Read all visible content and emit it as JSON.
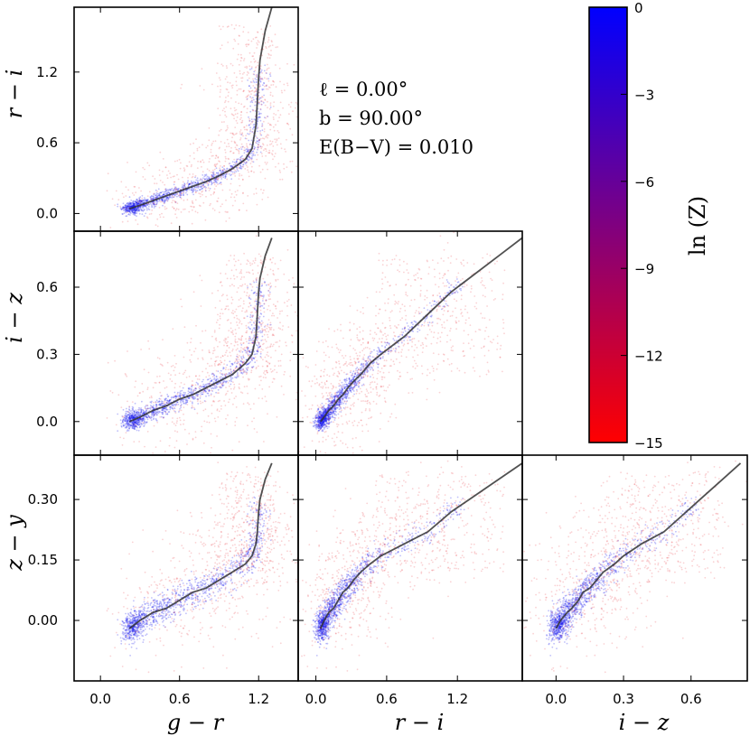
{
  "chart_data": {
    "type": "scatter",
    "description_free": true,
    "annotations": [
      "ℓ = 0.00°",
      "b = 90.00°",
      "E(B−V) = 0.010"
    ],
    "colorbar": {
      "label": "ln (Z)",
      "range": [
        -15,
        0
      ],
      "ticks": [
        0,
        -3,
        -6,
        -9,
        -12,
        -15
      ],
      "tick_labels": [
        "0",
        "−3",
        "−6",
        "−9",
        "−12",
        "−15"
      ],
      "color_low": "#ff0000",
      "color_high": "#0000ff"
    },
    "axis_labels": {
      "g-r": "g − r",
      "r-i": "r − i",
      "i-z": "i − z",
      "z-y": "z − y"
    },
    "ranges": {
      "g-r": [
        -0.2,
        1.5
      ],
      "r-i": [
        -0.15,
        1.75
      ],
      "i-z": [
        -0.15,
        0.85
      ],
      "z-y": [
        -0.15,
        0.41
      ]
    },
    "ticks": {
      "g-r": [
        0.0,
        0.6,
        1.2
      ],
      "r-i": [
        0.0,
        0.6,
        1.2
      ],
      "i-z": [
        0.0,
        0.3,
        0.6
      ],
      "z-y": [
        0.0,
        0.15,
        0.3
      ]
    },
    "tick_labels": {
      "g-r": [
        "0.0",
        "0.6",
        "1.2"
      ],
      "r-i": [
        "0.0",
        "0.6",
        "1.2"
      ],
      "i-z": [
        "0.0",
        "0.3",
        "0.6"
      ],
      "z-y": [
        "0.00",
        "0.15",
        "0.30"
      ]
    },
    "panels": [
      {
        "id": "gr-ri",
        "x": "g-r",
        "y": "r-i"
      },
      {
        "id": "gr-iz",
        "x": "g-r",
        "y": "i-z"
      },
      {
        "id": "ri-iz",
        "x": "r-i",
        "y": "i-z"
      },
      {
        "id": "gr-zy",
        "x": "g-r",
        "y": "z-y"
      },
      {
        "id": "ri-zy",
        "x": "r-i",
        "y": "z-y"
      },
      {
        "id": "iz-zy",
        "x": "i-z",
        "y": "z-y"
      }
    ],
    "stellar_locus": {
      "g-r": [
        0.22,
        0.3,
        0.4,
        0.5,
        0.6,
        0.7,
        0.8,
        0.9,
        1.0,
        1.1,
        1.15,
        1.18,
        1.19,
        1.2,
        1.21,
        1.25,
        1.3
      ],
      "r-i": [
        0.04,
        0.07,
        0.11,
        0.15,
        0.19,
        0.23,
        0.27,
        0.32,
        0.38,
        0.46,
        0.55,
        0.75,
        0.95,
        1.15,
        1.3,
        1.55,
        1.75
      ],
      "i-z": [
        0.0,
        0.02,
        0.05,
        0.07,
        0.1,
        0.12,
        0.15,
        0.18,
        0.21,
        0.26,
        0.3,
        0.38,
        0.48,
        0.58,
        0.64,
        0.74,
        0.82
      ],
      "z-y": [
        -0.02,
        0.0,
        0.02,
        0.03,
        0.05,
        0.07,
        0.08,
        0.1,
        0.12,
        0.14,
        0.16,
        0.19,
        0.22,
        0.27,
        0.3,
        0.35,
        0.39
      ]
    }
  }
}
